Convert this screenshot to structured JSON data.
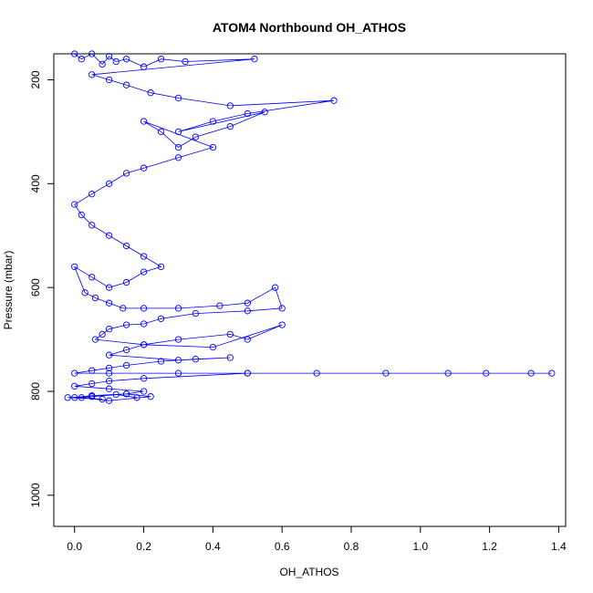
{
  "chart_data": {
    "type": "line",
    "title": "ATOM4 Northbound OH_ATHOS",
    "xlabel": "OH_ATHOS",
    "ylabel": "Pressure (mbar)",
    "xlim": [
      -0.06,
      1.42
    ],
    "ylim": [
      1060,
      150
    ],
    "y_reversed": true,
    "x_ticks": [
      0.0,
      0.2,
      0.4,
      0.6,
      0.8,
      1.0,
      1.2,
      1.4
    ],
    "x_tick_labels": [
      "0.0",
      "0.2",
      "0.4",
      "0.6",
      "0.8",
      "1.0",
      "1.2",
      "1.4"
    ],
    "y_ticks": [
      200,
      400,
      600,
      800,
      1000
    ],
    "y_tick_labels": [
      "200",
      "400",
      "600",
      "800",
      "1000"
    ],
    "grid": false,
    "legend": "none",
    "series": [
      {
        "marker": "open-circle",
        "line": true,
        "color": "#0000ff",
        "x": [
          0.0,
          0.02,
          0.05,
          0.08,
          0.1,
          0.12,
          0.15,
          0.2,
          0.25,
          0.32,
          0.52,
          0.05,
          0.1,
          0.15,
          0.22,
          0.3,
          0.45,
          0.75,
          0.5,
          0.4,
          0.3,
          0.55,
          0.45,
          0.35,
          0.3,
          0.25,
          0.2,
          0.4,
          0.3,
          0.2,
          0.15,
          0.1,
          0.05,
          0.0,
          0.02,
          0.05,
          0.1,
          0.15,
          0.2,
          0.25,
          0.2,
          0.15,
          0.1,
          0.05,
          0.0,
          0.03,
          0.06,
          0.1,
          0.14,
          0.2,
          0.3,
          0.42,
          0.5,
          0.58,
          0.6,
          0.5,
          0.35,
          0.25,
          0.2,
          0.15,
          0.1,
          0.08,
          0.06,
          0.2,
          0.4,
          0.6,
          0.5,
          0.45,
          0.3,
          0.2,
          0.15,
          0.1,
          0.3,
          0.45,
          0.35,
          0.25,
          0.15,
          0.1,
          0.05,
          0.0,
          0.1,
          0.3,
          0.5,
          0.7,
          1.08,
          1.19,
          1.32,
          1.38,
          0.9,
          0.5,
          0.2,
          0.1,
          0.05,
          0.0,
          0.1,
          0.2,
          0.15,
          0.05,
          -0.02,
          0.08,
          0.0,
          0.05,
          0.15,
          0.22,
          0.1,
          0.02,
          0.12,
          0.18
        ],
        "y": [
          150,
          160,
          150,
          170,
          155,
          165,
          160,
          175,
          160,
          165,
          160,
          190,
          200,
          210,
          225,
          235,
          250,
          240,
          265,
          280,
          300,
          262,
          290,
          310,
          330,
          300,
          280,
          330,
          350,
          370,
          380,
          400,
          420,
          440,
          460,
          480,
          500,
          520,
          540,
          560,
          570,
          590,
          600,
          580,
          560,
          610,
          620,
          630,
          640,
          640,
          640,
          635,
          630,
          600,
          640,
          645,
          650,
          660,
          670,
          672,
          680,
          690,
          700,
          710,
          715,
          672,
          700,
          690,
          700,
          710,
          720,
          730,
          740,
          735,
          738,
          742,
          750,
          755,
          760,
          765,
          765,
          765,
          765,
          765,
          765,
          765,
          765,
          765,
          765,
          765,
          775,
          780,
          785,
          790,
          795,
          800,
          805,
          810,
          812,
          815,
          812,
          808,
          805,
          810,
          818,
          812,
          806,
          812
        ]
      }
    ]
  }
}
